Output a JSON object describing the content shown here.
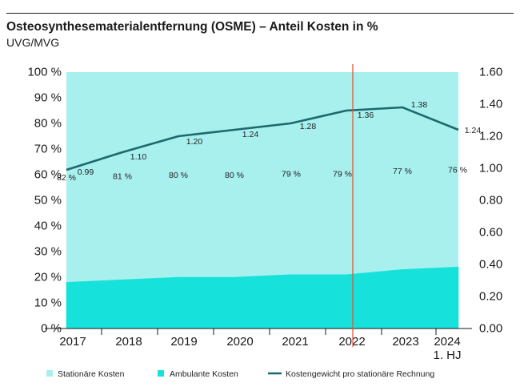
{
  "colors": {
    "stationaere_kosten": "#a8f0ee",
    "ambulante_kosten": "#16e2db",
    "kostengewicht_line": "#1c686c",
    "reference_line": "#e0522f",
    "text": "#1a1a1a",
    "axis": "#1a1a1a"
  },
  "chart_data": {
    "type": "area",
    "stacked": true,
    "title": "Osteosynthesematerialentfernung (OSME) – Anteil Kosten in %",
    "subtitle": "UVG/MVG",
    "categories": [
      "2017",
      "2018",
      "2019",
      "2020",
      "2021",
      "2022",
      "2023",
      "2024"
    ],
    "last_category_note": "1. HJ",
    "series": [
      {
        "name": "Stationäre Kosten",
        "values": [
          82,
          81,
          80,
          80,
          79,
          79,
          77,
          76
        ],
        "value_labels": [
          "82 %",
          "81 %",
          "80 %",
          "80 %",
          "79 %",
          "79 %",
          "77 %",
          "76 %"
        ]
      },
      {
        "name": "Ambulante Kosten",
        "values": [
          18,
          19,
          20,
          20,
          21,
          21,
          23,
          24
        ]
      },
      {
        "name": "Kostengewicht pro stationäre Rechnung",
        "right_axis": true,
        "values": [
          0.99,
          1.1,
          1.2,
          1.24,
          1.28,
          1.36,
          1.38,
          1.24
        ],
        "value_labels": [
          "0.99",
          "1.10",
          "1.20",
          "1.24",
          "1.28",
          "1.36",
          "1.38",
          "1.24"
        ]
      }
    ],
    "y_left": {
      "min": 0,
      "max": 100,
      "ticks": [
        0,
        10,
        20,
        30,
        40,
        50,
        60,
        70,
        80,
        90,
        100
      ],
      "tick_labels": [
        "0 %",
        "10 %",
        "20 %",
        "30 %",
        "40 %",
        "50 %",
        "60 %",
        "70 %",
        "80 %",
        "90 %",
        "100 %"
      ]
    },
    "y_right": {
      "min": 0,
      "max": 1.6,
      "ticks": [
        0,
        0.2,
        0.4,
        0.6,
        0.8,
        1.0,
        1.2,
        1.4,
        1.6
      ],
      "tick_labels": [
        "0.00",
        "0.20",
        "0.40",
        "0.60",
        "0.80",
        "1.00",
        "1.20",
        "1.40",
        "1.60"
      ]
    },
    "reference_line_category_index": 5,
    "grid": false,
    "legend_position": "bottom"
  }
}
